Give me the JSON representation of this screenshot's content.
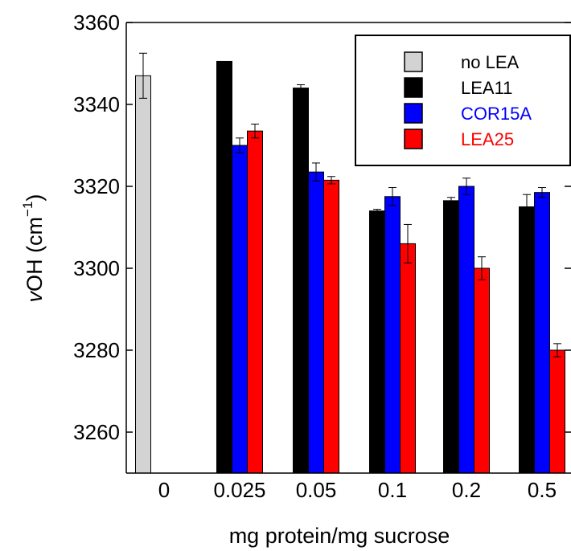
{
  "chart_data": {
    "type": "bar",
    "xlabel": "mg protein/mg sucrose",
    "ylabel": {
      "italic": "v",
      "main": "OH (cm",
      "sup": "−1",
      "end": ")"
    },
    "ylim": [
      3250,
      3360
    ],
    "yticks": [
      3260,
      3280,
      3300,
      3320,
      3340,
      3360
    ],
    "categories": [
      "0",
      "0.025",
      "0.05",
      "0.1",
      "0.2",
      "0.5"
    ],
    "series": [
      {
        "name": "no LEA",
        "color": "#d3d3d3",
        "values": [
          3347,
          null,
          null,
          null,
          null,
          null
        ],
        "errors": [
          5.5,
          null,
          null,
          null,
          null,
          null
        ]
      },
      {
        "name": "LEA11",
        "color": "#000000",
        "values": [
          null,
          3350.5,
          3344,
          3314,
          3316.5,
          3315
        ],
        "errors": [
          null,
          0,
          0.8,
          0.4,
          0.8,
          3
        ]
      },
      {
        "name": "COR15A",
        "color": "#0000ff",
        "values": [
          null,
          3330,
          3323.5,
          3317.5,
          3320,
          3318.5
        ],
        "errors": [
          null,
          1.8,
          2.2,
          2.2,
          2,
          1.2
        ]
      },
      {
        "name": "LEA25",
        "color": "#ff0000",
        "values": [
          null,
          3333.5,
          3321.5,
          3306,
          3300,
          3280
        ],
        "errors": [
          null,
          1.7,
          0.9,
          4.7,
          2.8,
          1.6
        ]
      }
    ],
    "legend": {
      "position": "top-right"
    },
    "grid": false
  }
}
